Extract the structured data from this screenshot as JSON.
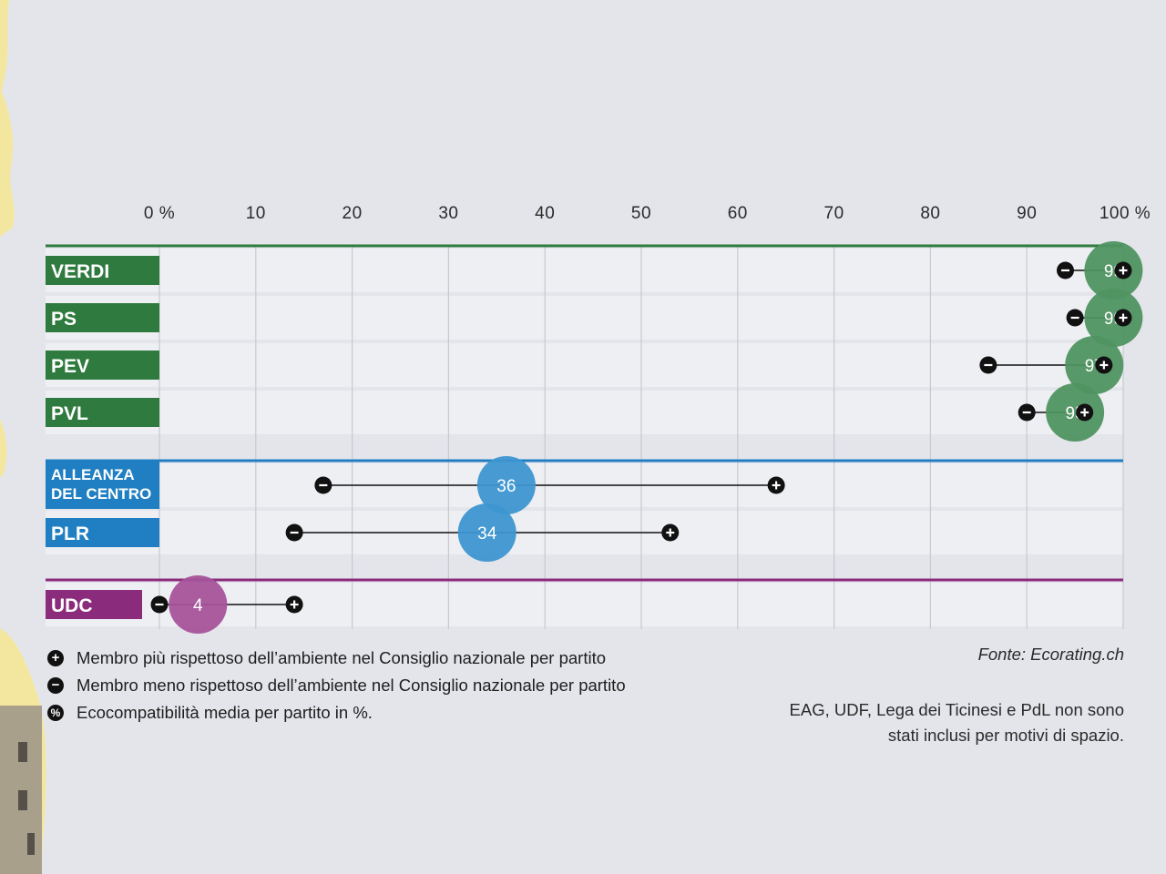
{
  "chart_data": {
    "type": "dot-range",
    "x_ticks": [
      "0 %",
      "10",
      "20",
      "30",
      "40",
      "50",
      "60",
      "70",
      "80",
      "90",
      "100 %"
    ],
    "xlim": [
      0,
      100
    ],
    "groups": [
      {
        "color": "#2f7a3e",
        "dot_color": "#4f9461",
        "parties": [
          {
            "name": "VERDI",
            "avg": 99,
            "min": 94,
            "max": 100
          },
          {
            "name": "PS",
            "avg": 99,
            "min": 95,
            "max": 100
          },
          {
            "name": "PEV",
            "avg": 97,
            "min": 86,
            "max": 98
          },
          {
            "name": "PVL",
            "avg": 95,
            "min": 90,
            "max": 96
          }
        ]
      },
      {
        "color": "#1f7fc2",
        "dot_color": "#3d96d0",
        "parties": [
          {
            "name": "ALLEANZA\nDEL CENTRO",
            "avg": 36,
            "min": 17,
            "max": 64
          },
          {
            "name": "PLR",
            "avg": 34,
            "min": 14,
            "max": 53
          }
        ]
      },
      {
        "color": "#8b2b7c",
        "dot_color": "#a5539a",
        "parties": [
          {
            "name": "UDC",
            "avg": 4,
            "min": 0,
            "max": 14
          }
        ]
      }
    ]
  },
  "legend": {
    "plus_icon": "+",
    "minus_icon": "−",
    "percent_icon": "%",
    "plus_text": "Membro più rispettoso dell’ambiente nel Consiglio nazionale per partito",
    "minus_text": "Membro meno rispettoso dell’ambiente nel Consiglio nazionale per partito",
    "percent_text": "Ecocompatibilità media per partito in %."
  },
  "source": "Fonte: Ecorating.ch",
  "note": "EAG, UDF, Lega dei Ticinesi e PdL non sono stati inclusi per motivi di spazio.",
  "colors": {
    "background": "#e4e5eb",
    "row_band": "#eeeff3",
    "grid": "#c8c9cf"
  }
}
